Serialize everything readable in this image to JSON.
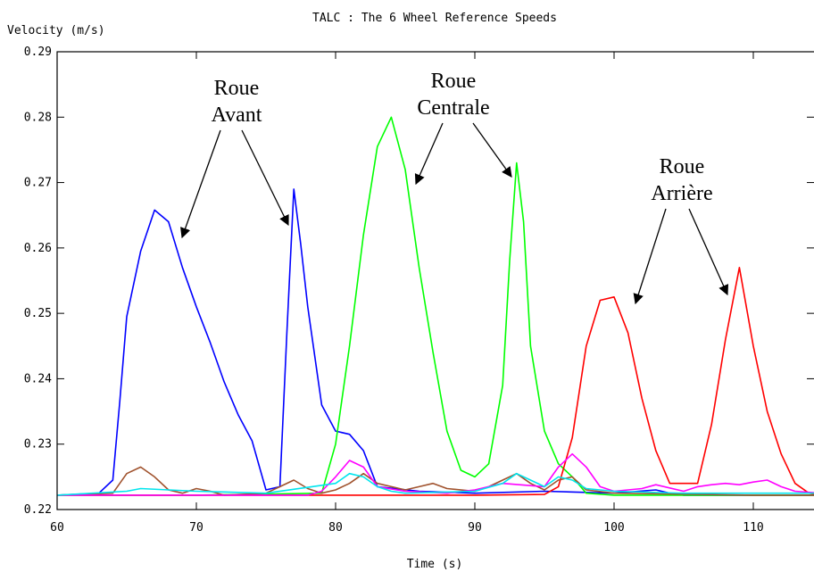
{
  "chart_data": {
    "type": "line",
    "title": "TALC : The 6 Wheel Reference Speeds",
    "xlabel": "Time (s)",
    "ylabel": "Velocity (m/s)",
    "xlim": [
      60,
      115
    ],
    "ylim": [
      0.22,
      0.29
    ],
    "x_ticks": [
      "60",
      "70",
      "80",
      "90",
      "100",
      "110"
    ],
    "y_ticks": [
      "0.22",
      "0.23",
      "0.24",
      "0.25",
      "0.26",
      "0.27",
      "0.28",
      "0.29"
    ],
    "grid": false,
    "series": [
      {
        "color": "#0000ff",
        "x": [
          60,
          63,
          64,
          64.5,
          65,
          66,
          67,
          68,
          69,
          70,
          71,
          72,
          73,
          74,
          75,
          76,
          76.5,
          77,
          77.5,
          78,
          79,
          80,
          81,
          82,
          83,
          86,
          90,
          95,
          100,
          103,
          104,
          105,
          110,
          115
        ],
        "y": [
          0.2222,
          0.2225,
          0.2245,
          0.2365,
          0.2495,
          0.2595,
          0.2658,
          0.264,
          0.257,
          0.251,
          0.2455,
          0.2395,
          0.2345,
          0.2305,
          0.223,
          0.2235,
          0.247,
          0.269,
          0.2605,
          0.251,
          0.236,
          0.232,
          0.2315,
          0.229,
          0.2235,
          0.2228,
          0.2225,
          0.2228,
          0.2225,
          0.223,
          0.2225,
          0.2222,
          0.2222,
          0.2222
        ]
      },
      {
        "color": "#00ff00",
        "x": [
          60,
          70,
          79,
          80,
          81,
          82,
          83,
          84,
          85,
          86,
          87,
          88,
          89,
          90,
          91,
          92,
          92.5,
          93,
          93.5,
          94,
          95,
          96,
          97,
          98,
          100,
          110,
          115
        ],
        "y": [
          0.2222,
          0.2222,
          0.2225,
          0.23,
          0.245,
          0.262,
          0.2755,
          0.28,
          0.272,
          0.257,
          0.244,
          0.232,
          0.226,
          0.225,
          0.227,
          0.239,
          0.258,
          0.273,
          0.264,
          0.245,
          0.232,
          0.227,
          0.225,
          0.2225,
          0.2222,
          0.2222,
          0.2222
        ]
      },
      {
        "color": "#ff0000",
        "x": [
          60,
          90,
          95,
          96,
          97,
          98,
          99,
          100,
          101,
          102,
          103,
          104,
          106,
          107,
          108,
          109,
          110,
          111,
          112,
          113,
          114,
          115
        ],
        "y": [
          0.2222,
          0.2222,
          0.2223,
          0.2235,
          0.231,
          0.245,
          0.252,
          0.2525,
          0.247,
          0.237,
          0.229,
          0.224,
          0.224,
          0.233,
          0.246,
          0.257,
          0.245,
          0.235,
          0.2285,
          0.224,
          0.2225,
          0.2222
        ]
      },
      {
        "color": "#a0522d",
        "x": [
          60,
          64,
          65,
          66,
          67,
          68,
          69,
          70,
          71,
          72,
          75,
          76,
          77,
          78,
          79,
          80,
          81,
          82,
          83,
          85,
          86,
          87,
          88,
          90,
          91,
          92,
          93,
          94,
          95,
          96,
          97,
          98,
          100,
          110,
          115
        ],
        "y": [
          0.2222,
          0.2225,
          0.2255,
          0.2265,
          0.225,
          0.223,
          0.2225,
          0.2232,
          0.2228,
          0.2222,
          0.2225,
          0.2235,
          0.2245,
          0.2232,
          0.2225,
          0.223,
          0.224,
          0.2255,
          0.224,
          0.223,
          0.2235,
          0.224,
          0.2232,
          0.2228,
          0.2235,
          0.2245,
          0.2255,
          0.224,
          0.223,
          0.2245,
          0.225,
          0.223,
          0.2225,
          0.2222,
          0.2222
        ]
      },
      {
        "color": "#ff00ff",
        "x": [
          60,
          78,
          79,
          80,
          81,
          82,
          83,
          85,
          88,
          90,
          92,
          95,
          96,
          97,
          98,
          99,
          100,
          102,
          103,
          105,
          106,
          107,
          108,
          109,
          110,
          111,
          112,
          113,
          115
        ],
        "y": [
          0.2222,
          0.2222,
          0.2228,
          0.225,
          0.2275,
          0.2265,
          0.2235,
          0.2228,
          0.2225,
          0.223,
          0.224,
          0.2235,
          0.2265,
          0.2285,
          0.2265,
          0.2235,
          0.2228,
          0.2232,
          0.2238,
          0.2228,
          0.2235,
          0.2238,
          0.224,
          0.2238,
          0.2242,
          0.2245,
          0.2235,
          0.2228,
          0.2225
        ]
      },
      {
        "color": "#00e5ee",
        "x": [
          60,
          65,
          66,
          70,
          75,
          80,
          81,
          82,
          83,
          84,
          85,
          90,
          92,
          93,
          94,
          95,
          96,
          97,
          98,
          100,
          105,
          110,
          115
        ],
        "y": [
          0.2222,
          0.2228,
          0.2232,
          0.2228,
          0.2225,
          0.224,
          0.2255,
          0.225,
          0.2235,
          0.2228,
          0.2225,
          0.2228,
          0.224,
          0.2255,
          0.2245,
          0.2235,
          0.225,
          0.2245,
          0.2232,
          0.2228,
          0.2225,
          0.2225,
          0.2225
        ]
      }
    ],
    "annotations": [
      {
        "lines": [
          "Roue",
          "Avant"
        ]
      },
      {
        "lines": [
          "Roue",
          "Centrale"
        ]
      },
      {
        "lines": [
          "Roue",
          "Arrière"
        ]
      }
    ]
  }
}
